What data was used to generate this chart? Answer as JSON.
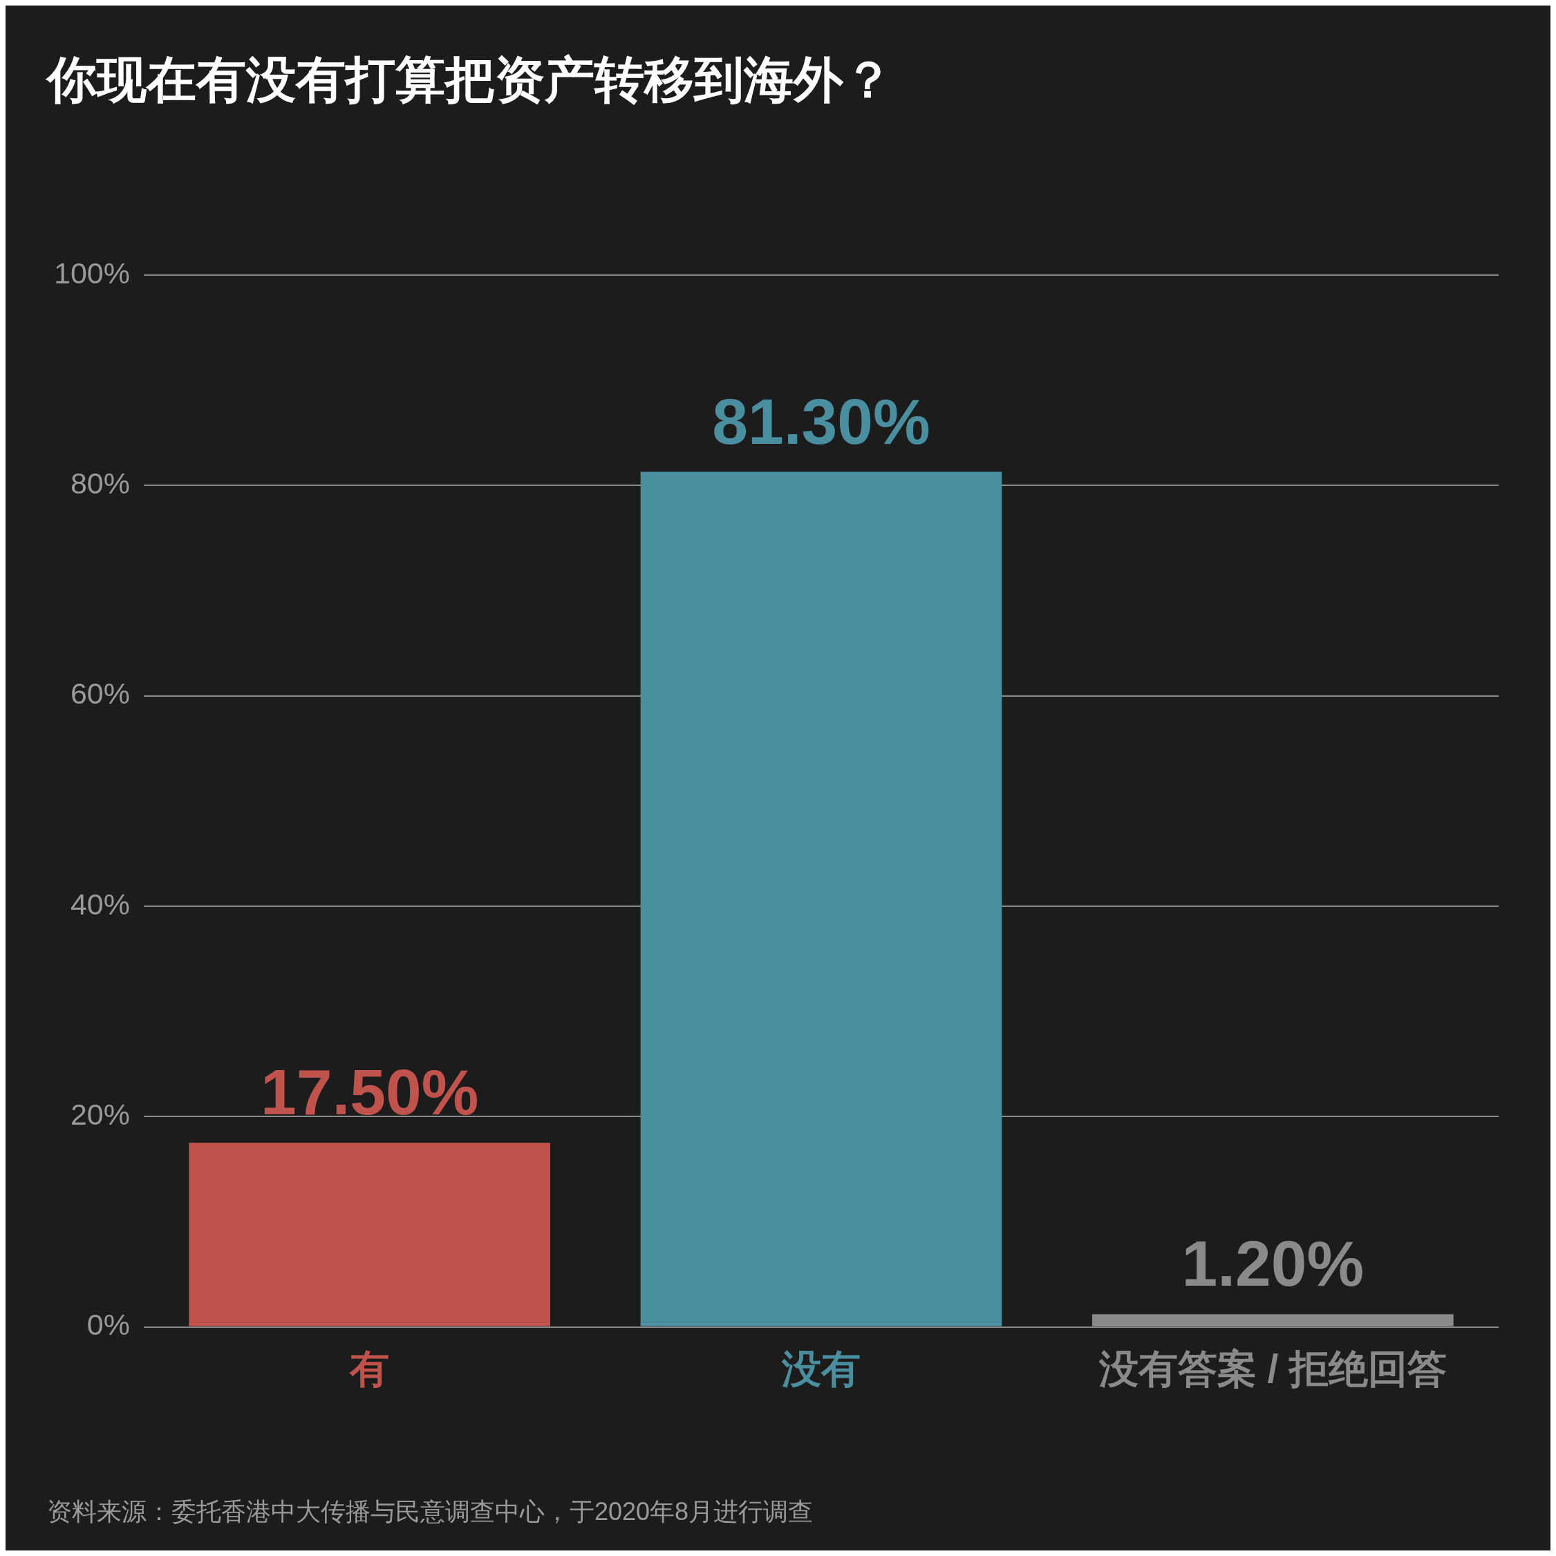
{
  "chart_data": {
    "type": "bar",
    "title": "你现在有没有打算把资产转移到海外？",
    "categories": [
      "有",
      "没有",
      "没有答案 / 拒绝回答"
    ],
    "values": [
      17.5,
      81.3,
      1.2
    ],
    "colors": [
      "#c0534b",
      "#4a8fa0",
      "#8a8a8a"
    ],
    "value_labels": [
      "17.50%",
      "81.30%",
      "1.20%"
    ],
    "ylim": [
      0,
      100
    ],
    "yticks": [
      {
        "value": 0,
        "label": "0%"
      },
      {
        "value": 20,
        "label": "20%"
      },
      {
        "value": 40,
        "label": "40%"
      },
      {
        "value": 60,
        "label": "60%"
      },
      {
        "value": 80,
        "label": "80%"
      },
      {
        "value": 100,
        "label": "100%"
      }
    ],
    "grid": "y",
    "legend": false,
    "annotations": [
      "资料来源：委托香港中大传播与民意调查中心，于2020年8月进行调查"
    ]
  }
}
